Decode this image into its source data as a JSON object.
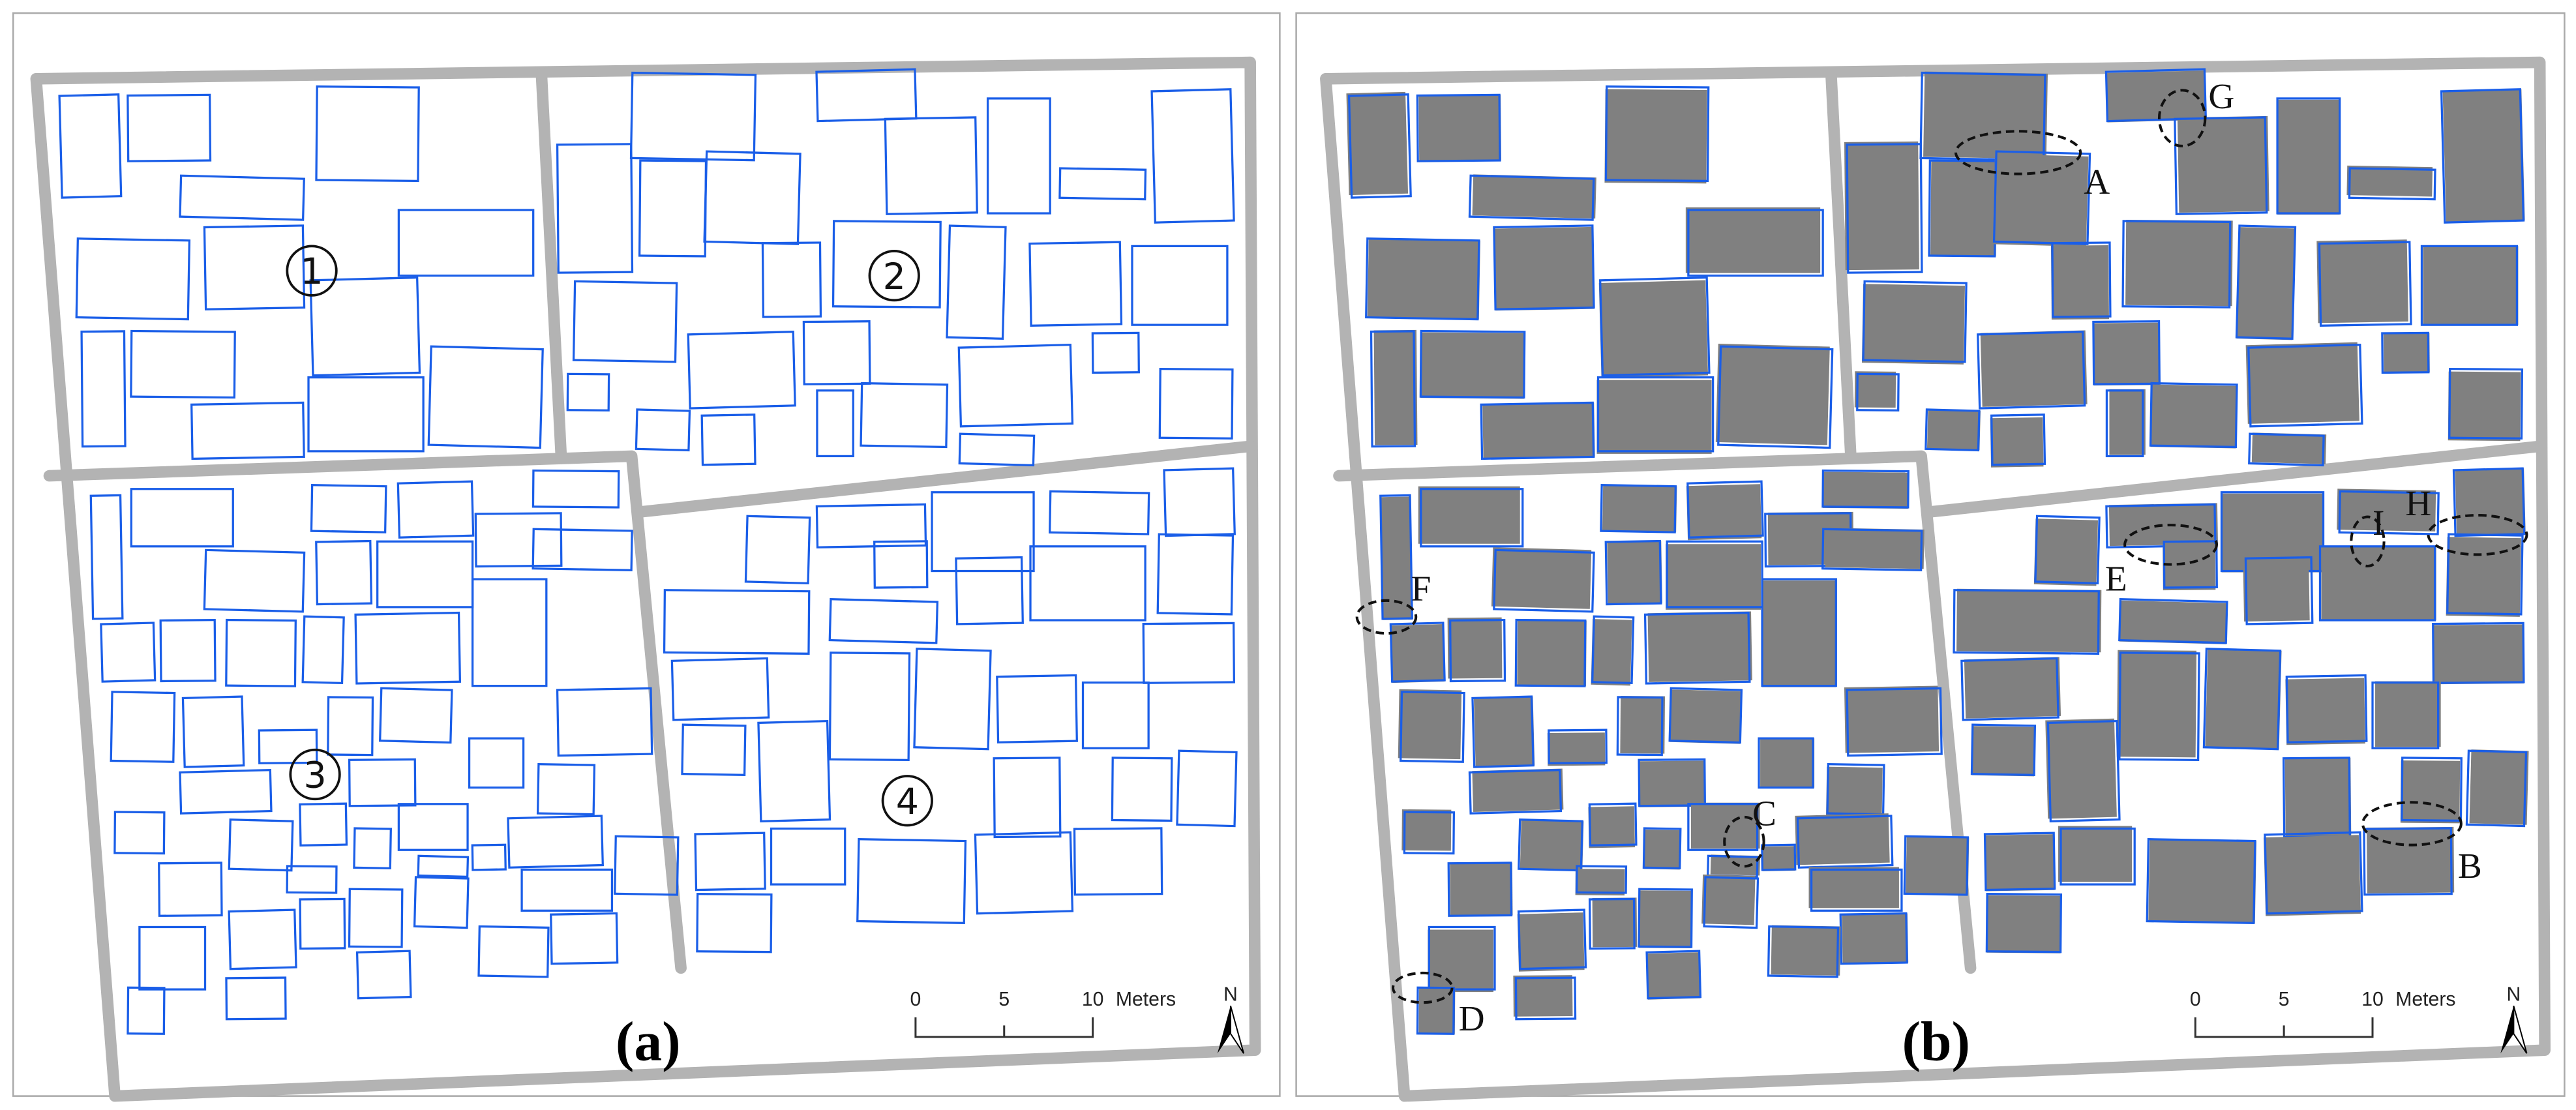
{
  "panels": [
    {
      "label": "(a)",
      "block_labels": [
        "1",
        "2",
        "3",
        "4"
      ]
    },
    {
      "label": "(b)",
      "annotations": [
        "A",
        "B",
        "C",
        "D",
        "E",
        "F",
        "G",
        "H",
        "I"
      ]
    }
  ],
  "scale_bar": {
    "ticks": [
      "0",
      "5",
      "10"
    ],
    "unit": "Meters"
  },
  "north_arrow": {
    "label": "N"
  },
  "colors": {
    "building_outline": "#1a5ee8",
    "building_fill": "#808080",
    "road": "#b3b3b3",
    "frame": "#aaaaaa"
  }
}
